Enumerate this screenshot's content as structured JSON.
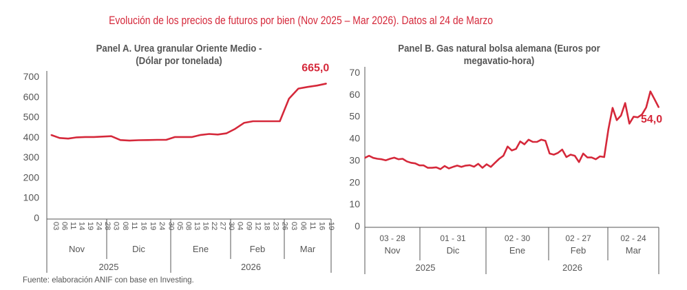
{
  "title": "Evolución de los precios de futuros por bien (Nov 2025 – Mar 2026). Datos al 24 de Marzo",
  "source": "Fuente: elaboración ANIF con base en Investing.",
  "colors": {
    "line": "#d5283a",
    "axis": "#555555",
    "text": "#555555"
  },
  "chart_data": [
    {
      "type": "line",
      "title_line1": "Panel A. Urea granular Oriente Medio -",
      "title_line2": "(Dólar por tonelada)",
      "ylim": [
        0,
        700
      ],
      "yticks": [
        0,
        100,
        200,
        300,
        400,
        500,
        600,
        700
      ],
      "grid": false,
      "months": [
        {
          "label": "Nov",
          "days": [
            "03",
            "06",
            "11",
            "14",
            "19",
            "24",
            "28"
          ]
        },
        {
          "label": "Dic",
          "days": [
            "03",
            "08",
            "11",
            "16",
            "19",
            "24",
            "30"
          ]
        },
        {
          "label": "Ene",
          "days": [
            "05",
            "08",
            "13",
            "16",
            "22",
            "27",
            "30"
          ]
        },
        {
          "label": "Feb",
          "days": [
            "04",
            "09",
            "12",
            "18",
            "23",
            "26"
          ]
        },
        {
          "label": "Mar",
          "days": [
            "03",
            "06",
            "11",
            "16",
            "19"
          ]
        }
      ],
      "years": [
        {
          "label": "2025",
          "months": 2
        },
        {
          "label": "2026",
          "months": 3
        }
      ],
      "values": [
        410,
        395,
        392,
        398,
        400,
        400,
        402,
        404,
        385,
        382,
        384,
        385,
        386,
        386,
        400,
        400,
        400,
        410,
        415,
        412,
        418,
        440,
        470,
        478,
        478,
        478,
        478,
        590,
        640,
        648,
        655,
        665
      ],
      "last_label": "665,0"
    },
    {
      "type": "line",
      "title_line1": "Panel B. Gas natural bolsa alemana (Euros por",
      "title_line2": "megavatio-hora)",
      "ylim": [
        0,
        70
      ],
      "yticks": [
        0,
        10,
        20,
        30,
        40,
        50,
        60,
        70
      ],
      "grid": false,
      "months": [
        {
          "label": "Nov",
          "range": "03 - 28"
        },
        {
          "label": "Dic",
          "range": "01 - 31"
        },
        {
          "label": "Ene",
          "range": "02 - 30"
        },
        {
          "label": "Feb",
          "range": "02 - 27"
        },
        {
          "label": "Mar",
          "range": "02 - 24"
        }
      ],
      "years": [
        {
          "label": "2025",
          "months": 2
        },
        {
          "label": "2026",
          "months": 3
        }
      ],
      "values": [
        31,
        32,
        31,
        30.6,
        30.4,
        29.9,
        30.6,
        31.1,
        30.4,
        30.6,
        29.4,
        28.8,
        28.5,
        27.6,
        27.6,
        26.5,
        26.5,
        26.7,
        25.9,
        27.3,
        26.2,
        26.9,
        27.5,
        26.9,
        27.5,
        27.7,
        27,
        28.3,
        26.5,
        28.1,
        26.9,
        28.8,
        30.6,
        32,
        36.2,
        34.4,
        35.1,
        38.5,
        37.2,
        39.3,
        38.3,
        38.3,
        39.3,
        38.8,
        33,
        32.5,
        33.3,
        34.8,
        31.4,
        32.5,
        32,
        29.1,
        33,
        31.2,
        31.2,
        30.4,
        31.7,
        31.4,
        44,
        53.8,
        48.2,
        50.3,
        56,
        46.6,
        49.8,
        49.5,
        50.8,
        54,
        61.3,
        57.7,
        54
      ],
      "last_label": "54,0"
    }
  ]
}
